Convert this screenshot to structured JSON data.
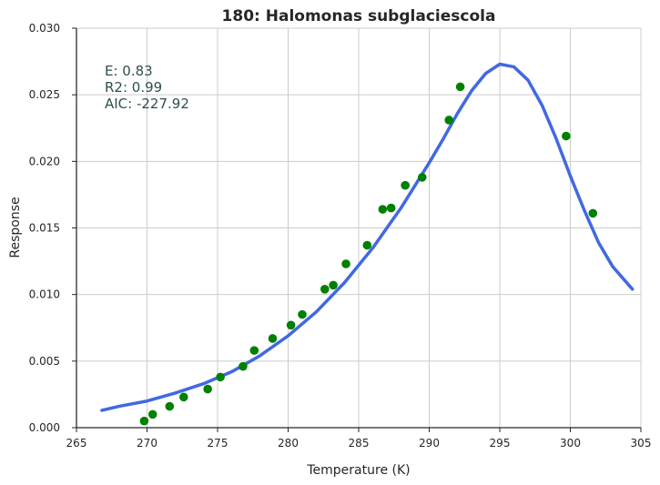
{
  "chart_data": {
    "type": "scatter",
    "title": "180: Halomonas subglaciescola",
    "xlabel": "Temperature (K)",
    "ylabel": "Response",
    "xlim": [
      265,
      305
    ],
    "ylim": [
      0.0,
      0.03
    ],
    "grid": true,
    "xticks": [
      "265",
      "270",
      "275",
      "280",
      "285",
      "290",
      "295",
      "300",
      "305"
    ],
    "yticks": [
      "0.000",
      "0.005",
      "0.010",
      "0.015",
      "0.020",
      "0.025",
      "0.030"
    ],
    "annotations": [
      "E:  0.83",
      "R2:  0.99",
      "AIC: -227.92"
    ],
    "colors": {
      "points": "#008000",
      "fit": "#4169e1",
      "annotation": "#2f4f4f"
    },
    "series": [
      {
        "type": "scatter",
        "x": [
          269.8,
          270.4,
          271.6,
          272.6,
          274.3,
          275.2,
          276.8,
          277.6,
          278.9,
          280.2,
          281.0,
          282.6,
          283.2,
          284.1,
          285.6,
          286.7,
          287.3,
          288.3,
          289.5,
          291.4,
          292.2,
          299.7,
          301.6
        ],
        "y": [
          0.0005,
          0.001,
          0.0016,
          0.0023,
          0.0029,
          0.0038,
          0.0046,
          0.0058,
          0.0067,
          0.0077,
          0.0085,
          0.0104,
          0.0107,
          0.0123,
          0.0137,
          0.0164,
          0.0165,
          0.0182,
          0.0188,
          0.0231,
          0.0256,
          0.0219,
          0.0161
        ]
      },
      {
        "type": "line",
        "x": [
          266.8,
          268.0,
          270.0,
          272.0,
          274.0,
          276.0,
          278.0,
          280.0,
          282.0,
          284.0,
          286.0,
          288.0,
          290.0,
          291.0,
          292.0,
          293.0,
          294.0,
          295.0,
          296.0,
          297.0,
          298.0,
          299.0,
          300.0,
          301.0,
          302.0,
          303.0,
          304.4
        ],
        "y": [
          0.0013,
          0.0016,
          0.002,
          0.0026,
          0.0033,
          0.0042,
          0.0054,
          0.0069,
          0.0087,
          0.0109,
          0.0135,
          0.0165,
          0.0199,
          0.0217,
          0.0236,
          0.0253,
          0.0266,
          0.0273,
          0.0271,
          0.0261,
          0.0242,
          0.0217,
          0.0189,
          0.0163,
          0.0139,
          0.0121,
          0.0104
        ]
      }
    ]
  }
}
